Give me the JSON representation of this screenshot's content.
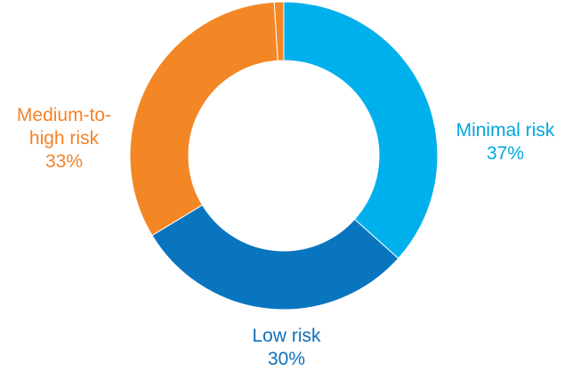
{
  "chart_data": {
    "type": "pie",
    "donut": true,
    "title": "",
    "slices": [
      {
        "label": "Minimal risk",
        "value": 37,
        "value_label": "37%",
        "color": "#00b0ec"
      },
      {
        "label": "Low risk",
        "value": 30,
        "value_label": "30%",
        "color": "#0a75bf"
      },
      {
        "label": "Medium-to-high risk",
        "value": 33,
        "value_label": "33%",
        "color": "#f38625"
      }
    ],
    "unlabeled_slices": [
      {
        "value": 1,
        "color": "#f38625"
      }
    ],
    "labels_display": {
      "medium_line1": "Medium-to-",
      "medium_line2": "high risk"
    }
  }
}
